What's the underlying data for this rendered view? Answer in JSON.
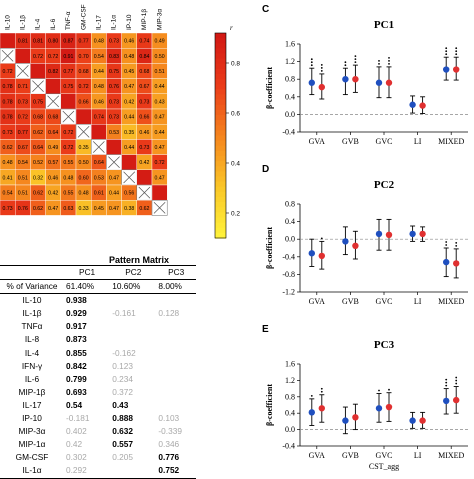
{
  "chart_data": [
    {
      "type": "heatmap",
      "panel": "",
      "labels": [
        "IL-10",
        "IL-1β",
        "IL-4",
        "IL-6",
        "TNF-α",
        "GM-CSF",
        "IL-17",
        "IL-1α",
        "IP-10",
        "MIP-1β",
        "MIP-3α",
        "MIP-1α"
      ],
      "visible_columns": [
        0,
        1,
        2,
        3,
        4,
        5,
        6,
        7,
        8,
        9,
        10
      ],
      "colorbar": {
        "label": "r",
        "ticks": [
          "0.8",
          "0.6",
          "0.4",
          "0.2"
        ],
        "min": 0.1,
        "max": 0.92
      },
      "rows": [
        [
          "",
          "0.81",
          "0.81",
          "0.80",
          "0.87",
          "0.77",
          "0.48",
          "0.73",
          "0.46",
          "0.74",
          "0.49"
        ],
        [
          "x",
          "",
          "0.72",
          "0.72",
          "0.91",
          "0.70",
          "0.54",
          "0.83",
          "0.48",
          "0.84",
          "0.50"
        ],
        [
          "0.72",
          "x",
          "",
          "0.82",
          "0.77",
          "0.68",
          "0.44",
          "0.75",
          "0.45",
          "0.68",
          "0.51"
        ],
        [
          "0.78",
          "0.71",
          "x",
          "",
          "0.75",
          "0.72",
          "0.48",
          "0.76",
          "0.47",
          "0.67",
          "0.44"
        ],
        [
          "0.78",
          "0.73",
          "0.75",
          "x",
          "",
          "0.66",
          "0.46",
          "0.73",
          "0.42",
          "0.73",
          "0.43"
        ],
        [
          "0.78",
          "0.72",
          "0.68",
          "0.68",
          "x",
          "",
          "0.74",
          "0.73",
          "0.44",
          "0.66",
          "0.47"
        ],
        [
          "0.73",
          "0.77",
          "0.62",
          "0.64",
          "0.72",
          "x",
          "",
          "0.53",
          "0.35",
          "0.46",
          "0.44"
        ],
        [
          "0.62",
          "0.67",
          "0.64",
          "0.49",
          "0.72",
          "0.35",
          "x",
          "",
          "0.44",
          "0.73",
          "0.47"
        ],
        [
          "0.48",
          "0.54",
          "0.52",
          "0.57",
          "0.55",
          "0.50",
          "0.64",
          "x",
          "",
          "0.42",
          "0.72"
        ],
        [
          "0.41",
          "0.51",
          "0.32",
          "0.46",
          "0.48",
          "0.60",
          "0.53",
          "0.47",
          "x",
          "",
          "0.47"
        ],
        [
          "0.54",
          "0.51",
          "0.62",
          "0.42",
          "0.55",
          "0.48",
          "0.61",
          "0.44",
          "0.56",
          "x",
          ""
        ],
        [
          "0.73",
          "0.76",
          "0.62",
          "0.47",
          "0.63",
          "0.33",
          "0.45",
          "0.47",
          "0.38",
          "0.62",
          "x"
        ]
      ]
    },
    {
      "type": "table",
      "title": "Pattern Matrix",
      "columns": [
        "PC1",
        "PC2",
        "PC3"
      ],
      "variance": {
        "label": "% of Variance",
        "values": [
          "61.40%",
          "10.60%",
          "8.00%"
        ]
      },
      "rows": [
        {
          "label": "IL-10",
          "values": [
            "0.938",
            "",
            ""
          ],
          "bold": [
            true,
            false,
            false
          ]
        },
        {
          "label": "IL-1β",
          "values": [
            "0.929",
            "-0.161",
            "0.128"
          ],
          "bold": [
            true,
            false,
            false
          ]
        },
        {
          "label": "TNFα",
          "values": [
            "0.917",
            "",
            ""
          ],
          "bold": [
            true,
            false,
            false
          ]
        },
        {
          "label": "IL-8",
          "values": [
            "0.873",
            "",
            ""
          ],
          "bold": [
            true,
            false,
            false
          ]
        },
        {
          "label": "IL-4",
          "values": [
            "0.855",
            "-0.162",
            ""
          ],
          "bold": [
            true,
            false,
            false
          ]
        },
        {
          "label": "IFN-γ",
          "values": [
            "0.842",
            "0.123",
            ""
          ],
          "bold": [
            true,
            false,
            false
          ]
        },
        {
          "label": "IL-6",
          "values": [
            "0.799",
            "0.234",
            ""
          ],
          "bold": [
            true,
            false,
            false
          ]
        },
        {
          "label": "MIP-1β",
          "values": [
            "0.693",
            "0.372",
            ""
          ],
          "bold": [
            true,
            false,
            false
          ]
        },
        {
          "label": "IL-17",
          "values": [
            "0.54",
            "0.43",
            ""
          ],
          "bold": [
            true,
            true,
            false
          ]
        },
        {
          "label": "IP-10",
          "values": [
            "-0.181",
            "0.888",
            "0.103"
          ],
          "bold": [
            false,
            true,
            false
          ]
        },
        {
          "label": "MIP-3α",
          "values": [
            "0.402",
            "0.632",
            "-0.339"
          ],
          "bold": [
            false,
            true,
            false
          ]
        },
        {
          "label": "MIP-1α",
          "values": [
            "0.42",
            "0.557",
            "0.346"
          ],
          "bold": [
            false,
            true,
            false
          ]
        },
        {
          "label": "GM-CSF",
          "values": [
            "0.302",
            "0.205",
            "0.776"
          ],
          "bold": [
            false,
            false,
            true
          ]
        },
        {
          "label": "IL-1α",
          "values": [
            "0.292",
            "",
            "0.752"
          ],
          "bold": [
            false,
            false,
            true
          ]
        }
      ]
    },
    {
      "type": "scatter",
      "panel": "C",
      "title": "PC1",
      "ylabel": "β-coefficient",
      "ylim": [
        -0.4,
        1.6
      ],
      "yticks": [
        -0.4,
        0.0,
        0.4,
        0.8,
        1.2,
        1.6
      ],
      "categories": [
        "GVA",
        "GVB",
        "GVC",
        "LI",
        "MIXED"
      ],
      "series": [
        {
          "color": "#1f4fbf",
          "values": [
            0.72,
            0.8,
            0.72,
            0.22,
            1.02
          ],
          "lower": [
            0.45,
            0.45,
            0.38,
            0.03,
            0.78
          ],
          "upper": [
            1.05,
            1.05,
            1.08,
            0.42,
            1.3
          ],
          "stars": [
            "***",
            "**",
            "**",
            "",
            "***"
          ]
        },
        {
          "color": "#e03030",
          "values": [
            0.62,
            0.8,
            0.72,
            0.2,
            1.02
          ],
          "lower": [
            0.35,
            0.5,
            0.38,
            0.02,
            0.78
          ],
          "upper": [
            0.92,
            1.12,
            1.08,
            0.4,
            1.3
          ],
          "stars": [
            "***",
            "***",
            "***",
            "",
            "***"
          ]
        }
      ]
    },
    {
      "type": "scatter",
      "panel": "D",
      "title": "PC2",
      "ylabel": "β-coefficient",
      "ylim": [
        -1.2,
        0.8
      ],
      "yticks": [
        -1.2,
        -0.8,
        -0.4,
        0.0,
        0.4,
        0.8
      ],
      "categories": [
        "GVA",
        "GVB",
        "GVC",
        "LI",
        "MIXED"
      ],
      "series": [
        {
          "color": "#1f4fbf",
          "values": [
            -0.32,
            -0.05,
            0.12,
            0.12,
            -0.52
          ],
          "lower": [
            -0.62,
            -0.35,
            -0.25,
            -0.05,
            -0.85
          ],
          "upper": [
            0.0,
            0.28,
            0.45,
            0.3,
            -0.2
          ],
          "stars": [
            "",
            "",
            "",
            "",
            "**"
          ]
        },
        {
          "color": "#e03030",
          "values": [
            -0.38,
            -0.15,
            0.1,
            0.12,
            -0.55
          ],
          "lower": [
            -0.68,
            -0.45,
            -0.25,
            -0.05,
            -0.88
          ],
          "upper": [
            -0.05,
            0.18,
            0.45,
            0.28,
            -0.22
          ],
          "stars": [
            "*",
            "",
            "",
            "",
            "**"
          ]
        }
      ]
    },
    {
      "type": "scatter",
      "panel": "E",
      "title": "PC3",
      "ylabel": "β-coefficient",
      "ylim": [
        -0.4,
        1.6
      ],
      "yticks": [
        -0.4,
        0.0,
        0.4,
        0.8,
        1.2,
        1.6
      ],
      "xlabel": "CST_agg",
      "categories": [
        "GVA",
        "GVB",
        "GVC",
        "LI",
        "MIXED"
      ],
      "series": [
        {
          "color": "#1f4fbf",
          "values": [
            0.42,
            0.22,
            0.52,
            0.22,
            0.7
          ],
          "lower": [
            0.1,
            -0.1,
            0.18,
            0.03,
            0.38
          ],
          "upper": [
            0.75,
            0.55,
            0.88,
            0.42,
            1.0
          ],
          "stars": [
            "*",
            "",
            "*",
            "",
            "***"
          ]
        },
        {
          "color": "#e03030",
          "values": [
            0.52,
            0.3,
            0.55,
            0.22,
            0.72
          ],
          "lower": [
            0.18,
            0.0,
            0.2,
            0.03,
            0.4
          ],
          "upper": [
            0.85,
            0.62,
            0.9,
            0.42,
            1.05
          ],
          "stars": [
            "**",
            "",
            "*",
            "",
            "***"
          ]
        }
      ]
    }
  ]
}
